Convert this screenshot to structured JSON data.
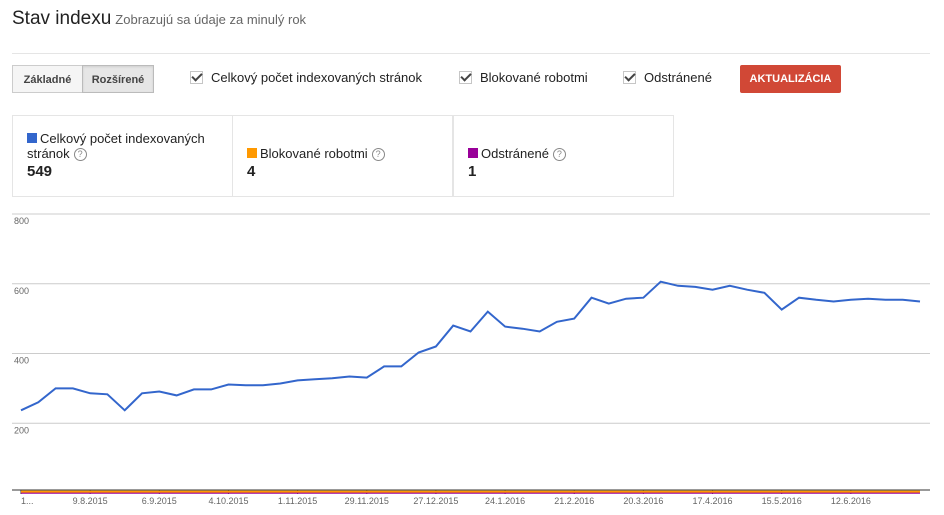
{
  "header": {
    "title": "Stav indexu",
    "subtitle": "Zobrazujú sa údaje za minulý rok"
  },
  "view_buttons": [
    "Základné",
    "Rozšírené"
  ],
  "update_button": "AKTUALIZÁCIA",
  "summary": [
    549,
    4,
    1
  ],
  "chart_data": {
    "type": "line",
    "categories": [
      "1...",
      null,
      null,
      null,
      "9.8.2015",
      null,
      null,
      null,
      "6.9.2015",
      null,
      null,
      null,
      "4.10.2015",
      null,
      null,
      null,
      "1.11.2015",
      null,
      null,
      null,
      "29.11.2015",
      null,
      null,
      null,
      "27.12.2015",
      null,
      null,
      null,
      "24.1.2016",
      null,
      null,
      null,
      "21.2.2016",
      null,
      null,
      null,
      "20.3.2016",
      null,
      null,
      null,
      "17.4.2016",
      null,
      null,
      null,
      "15.5.2016",
      null,
      null,
      null,
      "12.6.2016",
      null,
      null,
      null,
      null
    ],
    "series": [
      {
        "name": "Celkový počet indexovaných stránok",
        "color": "#3366cc",
        "values": [
          237,
          260,
          300,
          300,
          286,
          283,
          237,
          286,
          291,
          280,
          297,
          297,
          311,
          309,
          309,
          314,
          323,
          326,
          329,
          334,
          331,
          363,
          363,
          403,
          420,
          480,
          463,
          520,
          477,
          471,
          463,
          491,
          500,
          560,
          543,
          557,
          560,
          606,
          594,
          591,
          583,
          594,
          583,
          574,
          526,
          560,
          554,
          549,
          554,
          557,
          554,
          554,
          549
        ]
      },
      {
        "name": "Blokované robotmi",
        "color": "#ff9900",
        "values": [
          4,
          4,
          4,
          4,
          4,
          4,
          4,
          4,
          4,
          4,
          4,
          4,
          4,
          4,
          4,
          4,
          4,
          4,
          4,
          4,
          4,
          4,
          4,
          4,
          4,
          4,
          4,
          4,
          4,
          4,
          4,
          4,
          4,
          4,
          4,
          4,
          4,
          4,
          4,
          4,
          4,
          4,
          4,
          4,
          4,
          4,
          4,
          4,
          4,
          4,
          4,
          4,
          4
        ]
      },
      {
        "name": "Odstránené",
        "color": "#990099",
        "values": [
          1,
          1,
          1,
          1,
          1,
          1,
          1,
          1,
          1,
          1,
          1,
          1,
          1,
          1,
          1,
          1,
          1,
          1,
          1,
          1,
          1,
          1,
          1,
          1,
          1,
          1,
          1,
          1,
          1,
          1,
          1,
          1,
          1,
          1,
          1,
          1,
          1,
          1,
          1,
          1,
          1,
          1,
          1,
          1,
          1,
          1,
          1,
          1,
          1,
          1,
          1,
          1,
          1
        ]
      }
    ],
    "ylim": [
      0,
      800
    ],
    "yticks": [
      200,
      400,
      600,
      800
    ],
    "grid": true
  }
}
